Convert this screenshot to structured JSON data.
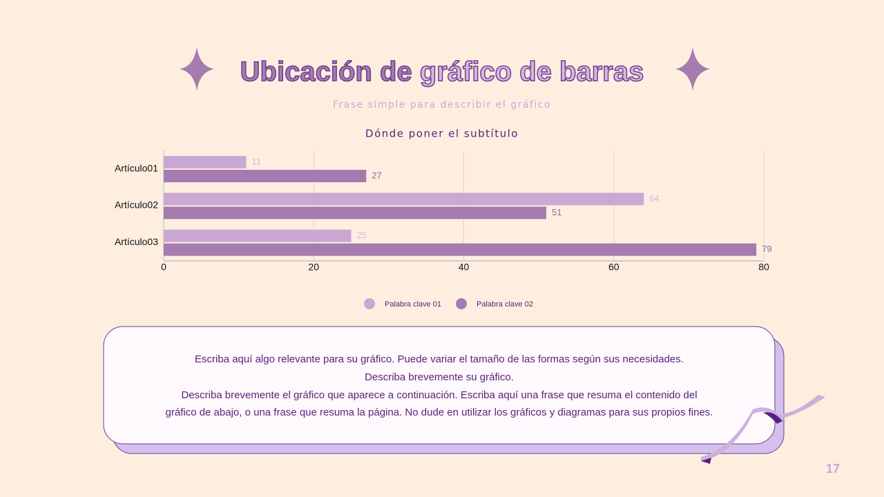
{
  "slide": {
    "title_parts": [
      "Ubicación de",
      "gráfico de barras"
    ],
    "subtitle": "Frase simple para describir el gráfico",
    "description": [
      "Escriba aquí algo relevante para su gráfico. Puede variar el tamaño de las formas según sus necesidades.",
      "Describa brevemente su gráfico.",
      "Describa brevemente el gráfico que aparece a continuación. Escriba aquí una frase que resuma el contenido del",
      "gráfico de abajo, o una frase que resuma la página. No dude en utilizar los gráficos y diagramas para sus propios fines."
    ],
    "page_number": "17"
  },
  "chart_data": {
    "type": "bar",
    "orientation": "horizontal",
    "title": "Dónde poner el subtítulo",
    "categories": [
      "Artículo01",
      "Artículo02",
      "Artículo03"
    ],
    "series": [
      {
        "name": "Palabra clave 01",
        "color": "#c9a8d4",
        "values": [
          11,
          64,
          25
        ]
      },
      {
        "name": "Palabra clave 02",
        "color": "#a57bb0",
        "values": [
          27,
          51,
          79
        ]
      }
    ],
    "xlim": [
      0,
      80
    ],
    "xticks": [
      0,
      20,
      40,
      60,
      80
    ],
    "grid": true,
    "legend": "bottom"
  }
}
